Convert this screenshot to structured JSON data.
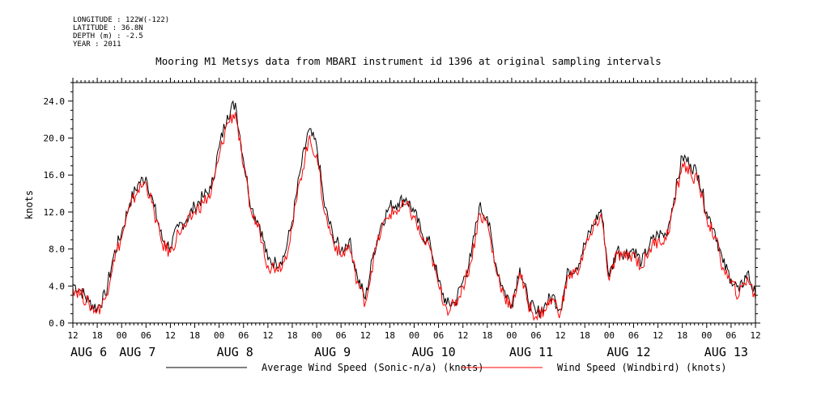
{
  "metadata": [
    "LONGITUDE : 122W(-122)",
    "LATITUDE : 36.8N",
    "DEPTH (m) : -2.5",
    "YEAR : 2011"
  ],
  "colors": {
    "average": "#000000",
    "windbird": "#ff0000"
  },
  "chart_data": {
    "type": "line",
    "title": "Mooring M1 Metsys data from MBARI instrument id 1396 at original sampling intervals",
    "ylabel": "knots",
    "xlabel": "",
    "ylim": [
      0,
      26
    ],
    "xlim": [
      0,
      168
    ],
    "yticks": [
      "0.0",
      "4.0",
      "8.0",
      "12.0",
      "16.0",
      "20.0",
      "24.0"
    ],
    "xtick_labels": [
      "12",
      "18",
      "00",
      "06",
      "12",
      "18",
      "00",
      "06",
      "12",
      "18",
      "00",
      "06",
      "12",
      "18",
      "00",
      "06",
      "12",
      "18",
      "00",
      "06",
      "12",
      "18",
      "00",
      "06",
      "12",
      "18",
      "00",
      "06",
      "12"
    ],
    "date_labels": [
      "AUG  6",
      "AUG  7",
      "AUG  8",
      "AUG  9",
      "AUG 10",
      "AUG 11",
      "AUG 12",
      "AUG 13"
    ],
    "legend_position": "bottom",
    "series": [
      {
        "name": "Average Wind Speed (Sonic-n/a) (knots)",
        "x": [
          0,
          2,
          4,
          6,
          8,
          10,
          12,
          14,
          16,
          18,
          20,
          22,
          24,
          26,
          28,
          30,
          32,
          34,
          36,
          38,
          40,
          42,
          44,
          46,
          48,
          50,
          52,
          54,
          56,
          58,
          60,
          62,
          64,
          66,
          68,
          70,
          72,
          74,
          76,
          78,
          80,
          82,
          84,
          86,
          88,
          90,
          92,
          94,
          96,
          98,
          100,
          102,
          104,
          106,
          108,
          110,
          112,
          114,
          116,
          118,
          120,
          122,
          124,
          126,
          128,
          130,
          132,
          134,
          136,
          138,
          140,
          142,
          144,
          146,
          148,
          150,
          152,
          154,
          156,
          158,
          160,
          162,
          164,
          166,
          168
        ],
        "values": [
          4.2,
          3.5,
          2.3,
          1.6,
          3.0,
          7.2,
          9.8,
          13.0,
          15.0,
          15.8,
          12.6,
          9.0,
          8.2,
          10.4,
          11.2,
          12.6,
          13.6,
          14.5,
          19.0,
          22.5,
          23.8,
          17.6,
          12.4,
          10.6,
          6.8,
          6.5,
          7.2,
          11.0,
          16.5,
          20.8,
          19.2,
          12.5,
          9.5,
          7.8,
          9.0,
          5.0,
          2.6,
          7.6,
          10.8,
          12.6,
          13.0,
          13.5,
          12.0,
          9.6,
          8.5,
          4.5,
          2.0,
          2.2,
          4.5,
          7.2,
          12.6,
          11.5,
          6.5,
          3.6,
          2.0,
          6.0,
          2.5,
          1.0,
          1.8,
          3.0,
          1.5,
          5.8,
          6.0,
          8.5,
          10.5,
          12.3,
          5.0,
          8.0,
          7.5,
          8.0,
          6.5,
          8.5,
          9.6,
          9.5,
          13.5,
          18.0,
          17.2,
          16.0,
          12.0,
          10.0,
          6.5,
          4.8,
          3.4,
          5.5,
          3.0
        ]
      },
      {
        "name": "Wind Speed (Windbird) (knots)",
        "x": [
          0,
          2,
          4,
          6,
          8,
          10,
          12,
          14,
          16,
          18,
          20,
          22,
          24,
          26,
          28,
          30,
          32,
          34,
          36,
          38,
          40,
          42,
          44,
          46,
          48,
          50,
          52,
          54,
          56,
          58,
          60,
          62,
          64,
          66,
          68,
          70,
          72,
          74,
          76,
          78,
          80,
          82,
          84,
          86,
          88,
          90,
          92,
          94,
          96,
          98,
          100,
          102,
          104,
          106,
          108,
          110,
          112,
          114,
          116,
          118,
          120,
          122,
          124,
          126,
          128,
          130,
          132,
          134,
          136,
          138,
          140,
          142,
          144,
          146,
          148,
          150,
          152,
          154,
          156,
          158,
          160,
          162,
          164,
          166,
          168
        ],
        "values": [
          3.8,
          3.2,
          2.0,
          1.3,
          2.6,
          6.8,
          9.2,
          12.5,
          14.4,
          15.2,
          12.0,
          8.5,
          7.6,
          9.8,
          10.6,
          12.0,
          13.0,
          13.9,
          18.0,
          21.6,
          22.8,
          16.8,
          11.8,
          10.0,
          6.2,
          6.0,
          6.6,
          10.4,
          15.6,
          19.8,
          18.2,
          11.8,
          9.0,
          7.2,
          8.4,
          4.5,
          2.2,
          7.0,
          10.2,
          11.8,
          12.2,
          12.8,
          11.4,
          9.0,
          7.9,
          4.0,
          1.6,
          1.8,
          4.0,
          6.6,
          11.8,
          10.8,
          6.0,
          3.2,
          1.6,
          5.5,
          2.1,
          0.7,
          1.4,
          2.6,
          1.1,
          5.2,
          5.4,
          8.0,
          10.0,
          11.8,
          4.6,
          7.5,
          7.0,
          7.5,
          6.0,
          8.0,
          9.0,
          9.0,
          12.8,
          17.2,
          16.3,
          15.1,
          11.3,
          9.4,
          6.0,
          4.3,
          3.0,
          5.0,
          2.6
        ]
      }
    ]
  }
}
